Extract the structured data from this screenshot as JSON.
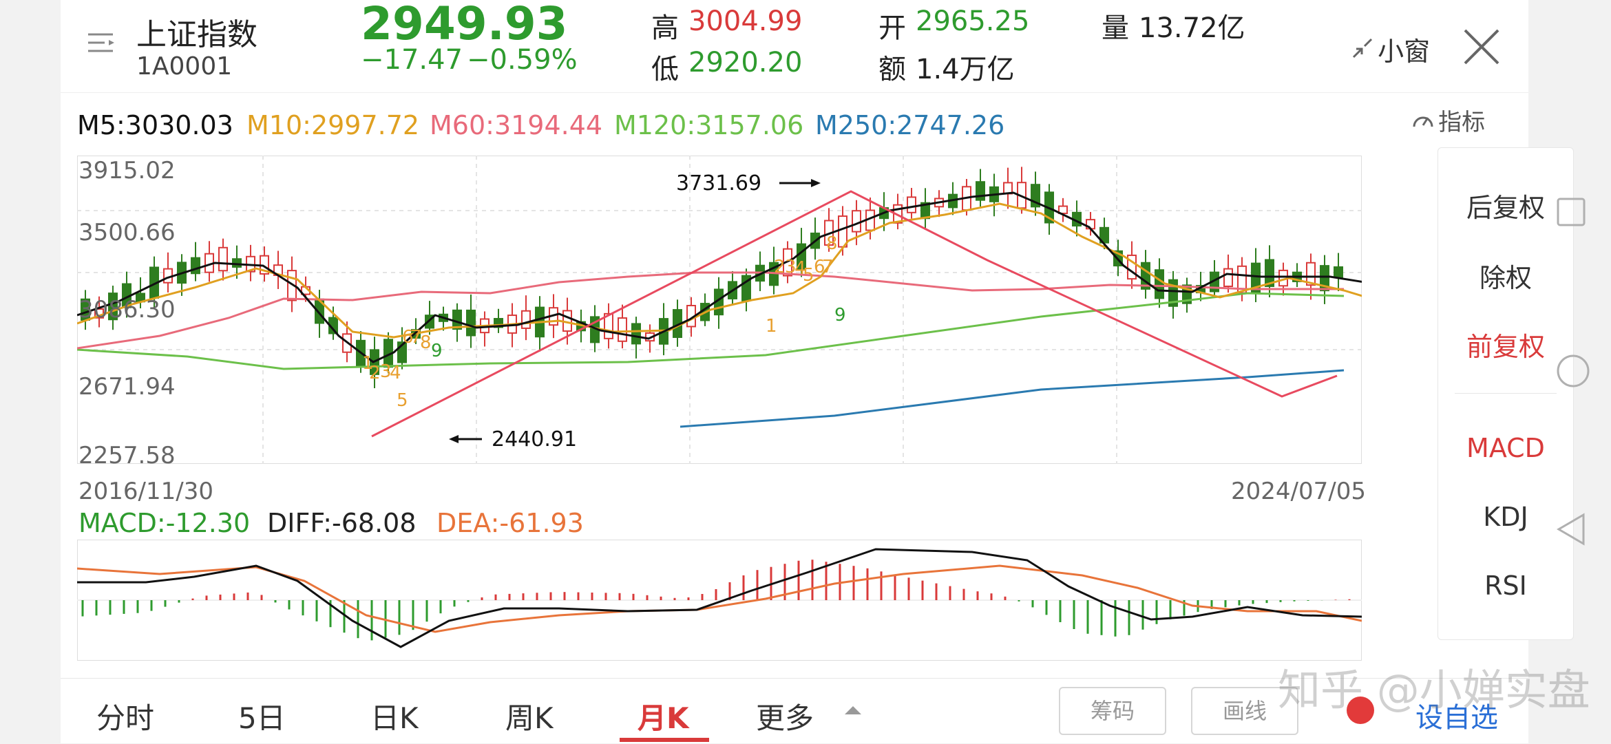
{
  "header": {
    "menu_icon": "menu-lines-icon",
    "index_name": "上证指数",
    "index_code": "1A0001",
    "price": "2949.93",
    "change": "−17.47",
    "change_pct": "−0.59%",
    "high_label": "高",
    "high_value": "3004.99",
    "low_label": "低",
    "low_value": "2920.20",
    "open_label": "开",
    "open_value": "2965.25",
    "amount_label": "额",
    "amount_value": "1.4万亿",
    "volume_label": "量",
    "volume_value": "13.72亿",
    "mini_window_label": "小窗",
    "close_icon": "close-icon"
  },
  "ma_legend": {
    "m5": "M5:3030.03",
    "m10": "M10:2997.72",
    "m60": "M60:3194.44",
    "m120": "M120:3157.06",
    "m250": "M250:2747.26",
    "indicator_label": "指标"
  },
  "main_chart": {
    "y_ticks": [
      "3915.02",
      "3500.66",
      "3086.30",
      "2671.94",
      "2257.58"
    ],
    "start_date": "2016/11/30",
    "end_date": "2024/07/05",
    "high_annotation": "3731.69",
    "low_annotation": "2440.91",
    "nine_turn_labels": [
      "1",
      "2",
      "3",
      "4",
      "5",
      "6",
      "7",
      "8",
      "9",
      "1",
      "2",
      "3",
      "4",
      "5",
      "6",
      "7",
      "8",
      "9"
    ]
  },
  "macd_legend": {
    "macd": "MACD:-12.30",
    "diff": "DIFF:-68.08",
    "dea": "DEA:-61.93"
  },
  "side_menu": {
    "items": [
      "后复权",
      "除权",
      "前复权",
      "MACD",
      "KDJ",
      "RSI"
    ]
  },
  "tabs": [
    "分时",
    "5日",
    "日K",
    "周K",
    "月K",
    "更多"
  ],
  "bottom_buttons": {
    "chips": "筹码",
    "draw": "画线",
    "watchlist": "设自选"
  },
  "watermark": "知乎 @小婵实盘",
  "colors": {
    "up": "#d93a3a",
    "down": "#2e7d1f",
    "m5": "#111111",
    "m10": "#e0a020",
    "m60": "#e86a7a",
    "m120": "#6cc04a",
    "m250": "#2a7ab0"
  }
}
